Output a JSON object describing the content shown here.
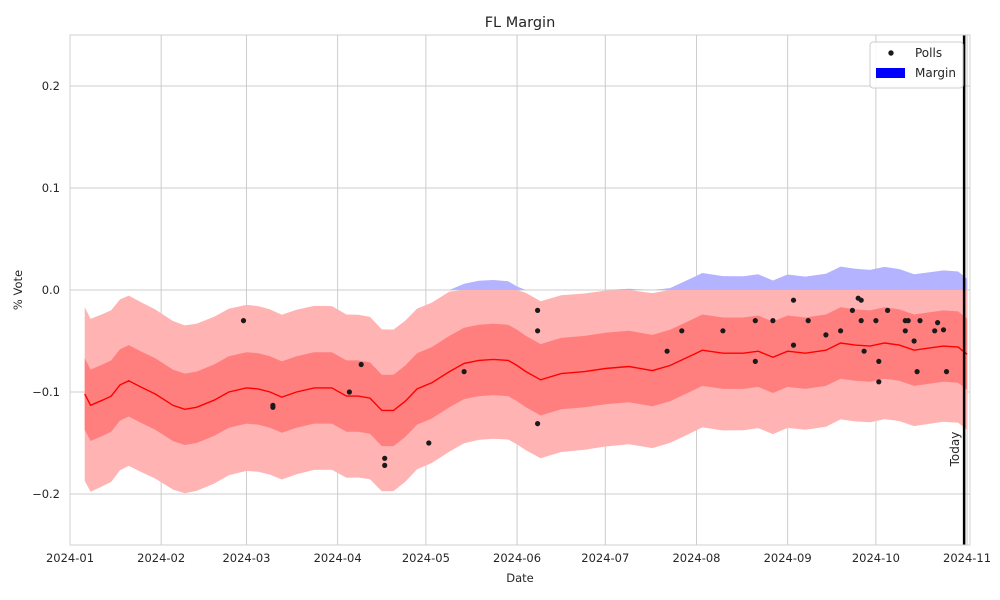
{
  "chart_data": {
    "type": "line",
    "title": "FL Margin",
    "xlabel": "Date",
    "ylabel": "% Vote",
    "ylim": [
      -0.25,
      0.25
    ],
    "xlim": [
      "2024-01-01",
      "2024-11-02"
    ],
    "grid": true,
    "legend_placement": "top-right",
    "x_ticks": [
      "2024-01",
      "2024-02",
      "2024-03",
      "2024-04",
      "2024-05",
      "2024-06",
      "2024-07",
      "2024-08",
      "2024-09",
      "2024-10",
      "2024-11"
    ],
    "y_ticks": [
      "−0.2",
      "−0.1",
      "0.0",
      "0.1",
      "0.2"
    ],
    "legend": {
      "polls_label": "Polls",
      "margin_label": "Margin"
    },
    "today": {
      "label": "Today",
      "date": "2024-10-31"
    },
    "colors": {
      "line": "#ff0000",
      "band_inner": "#ff7f7f",
      "band_outer": "#ffb3b3",
      "band_outer_pos": "#b3b3ff",
      "legend_margin": "#0000ff",
      "polls": "#1a1a1a",
      "today_line": "#000000",
      "grid": "#cccccc"
    },
    "series": [
      {
        "kind": "margin_line",
        "dates": [
          "2024-01-06",
          "2024-01-08",
          "2024-01-12",
          "2024-01-15",
          "2024-01-18",
          "2024-01-21",
          "2024-01-25",
          "2024-01-30",
          "2024-02-05",
          "2024-02-09",
          "2024-02-13",
          "2024-02-19",
          "2024-02-24",
          "2024-03-01",
          "2024-03-05",
          "2024-03-09",
          "2024-03-13",
          "2024-03-18",
          "2024-03-24",
          "2024-03-30",
          "2024-04-04",
          "2024-04-08",
          "2024-04-12",
          "2024-04-16",
          "2024-04-20",
          "2024-04-24",
          "2024-04-28",
          "2024-05-03",
          "2024-05-09",
          "2024-05-14",
          "2024-05-19",
          "2024-05-24",
          "2024-05-29",
          "2024-06-01",
          "2024-06-04",
          "2024-06-09",
          "2024-06-16",
          "2024-06-24",
          "2024-07-01",
          "2024-07-09",
          "2024-07-17",
          "2024-07-23",
          "2024-07-29",
          "2024-08-03",
          "2024-08-10",
          "2024-08-17",
          "2024-08-22",
          "2024-08-27",
          "2024-09-01",
          "2024-09-07",
          "2024-09-14",
          "2024-09-19",
          "2024-09-24",
          "2024-09-29",
          "2024-10-04",
          "2024-10-09",
          "2024-10-14",
          "2024-10-19",
          "2024-10-24",
          "2024-10-29",
          "2024-11-01"
        ],
        "values": [
          -0.102,
          -0.113,
          -0.108,
          -0.104,
          -0.093,
          -0.089,
          -0.095,
          -0.102,
          -0.113,
          -0.117,
          -0.115,
          -0.108,
          -0.1,
          -0.096,
          -0.097,
          -0.1,
          -0.105,
          -0.1,
          -0.096,
          -0.096,
          -0.104,
          -0.104,
          -0.106,
          -0.118,
          -0.118,
          -0.109,
          -0.097,
          -0.091,
          -0.08,
          -0.072,
          -0.069,
          -0.068,
          -0.069,
          -0.074,
          -0.08,
          -0.088,
          -0.082,
          -0.08,
          -0.077,
          -0.075,
          -0.079,
          -0.074,
          -0.066,
          -0.059,
          -0.062,
          -0.062,
          -0.06,
          -0.066,
          -0.06,
          -0.062,
          -0.059,
          -0.052,
          -0.054,
          -0.055,
          -0.052,
          -0.054,
          -0.059,
          -0.057,
          -0.055,
          -0.056,
          -0.063
        ]
      },
      {
        "kind": "inner_band_width",
        "values": [
          0.035
        ]
      },
      {
        "kind": "outer_band_width",
        "values": [
          0.085,
          0.082,
          0.08,
          0.078,
          0.076,
          0.075,
          0.074
        ]
      },
      {
        "kind": "polls",
        "name": "Polls",
        "dates": [
          "2024-02-29",
          "2024-03-10",
          "2024-03-10",
          "2024-04-05",
          "2024-04-09",
          "2024-04-17",
          "2024-04-17",
          "2024-05-02",
          "2024-05-14",
          "2024-06-08",
          "2024-06-08",
          "2024-06-08",
          "2024-07-22",
          "2024-07-27",
          "2024-08-10",
          "2024-08-21",
          "2024-08-21",
          "2024-08-27",
          "2024-09-03",
          "2024-09-03",
          "2024-09-08",
          "2024-09-14",
          "2024-09-19",
          "2024-09-23",
          "2024-09-25",
          "2024-09-26",
          "2024-09-26",
          "2024-09-27",
          "2024-10-01",
          "2024-10-02",
          "2024-10-02",
          "2024-10-05",
          "2024-10-11",
          "2024-10-11",
          "2024-10-12",
          "2024-10-14",
          "2024-10-15",
          "2024-10-16",
          "2024-10-21",
          "2024-10-22",
          "2024-10-24",
          "2024-10-25"
        ],
        "values": [
          -0.03,
          -0.115,
          -0.113,
          -0.1,
          -0.073,
          -0.165,
          -0.172,
          -0.15,
          -0.08,
          -0.02,
          -0.04,
          -0.131,
          -0.06,
          -0.04,
          -0.04,
          -0.03,
          -0.07,
          -0.03,
          -0.01,
          -0.054,
          -0.03,
          -0.044,
          -0.04,
          -0.02,
          -0.008,
          -0.01,
          -0.03,
          -0.06,
          -0.03,
          -0.07,
          -0.09,
          -0.02,
          -0.03,
          -0.04,
          -0.03,
          -0.05,
          -0.08,
          -0.03,
          -0.04,
          -0.032,
          -0.039,
          -0.08
        ]
      }
    ]
  }
}
